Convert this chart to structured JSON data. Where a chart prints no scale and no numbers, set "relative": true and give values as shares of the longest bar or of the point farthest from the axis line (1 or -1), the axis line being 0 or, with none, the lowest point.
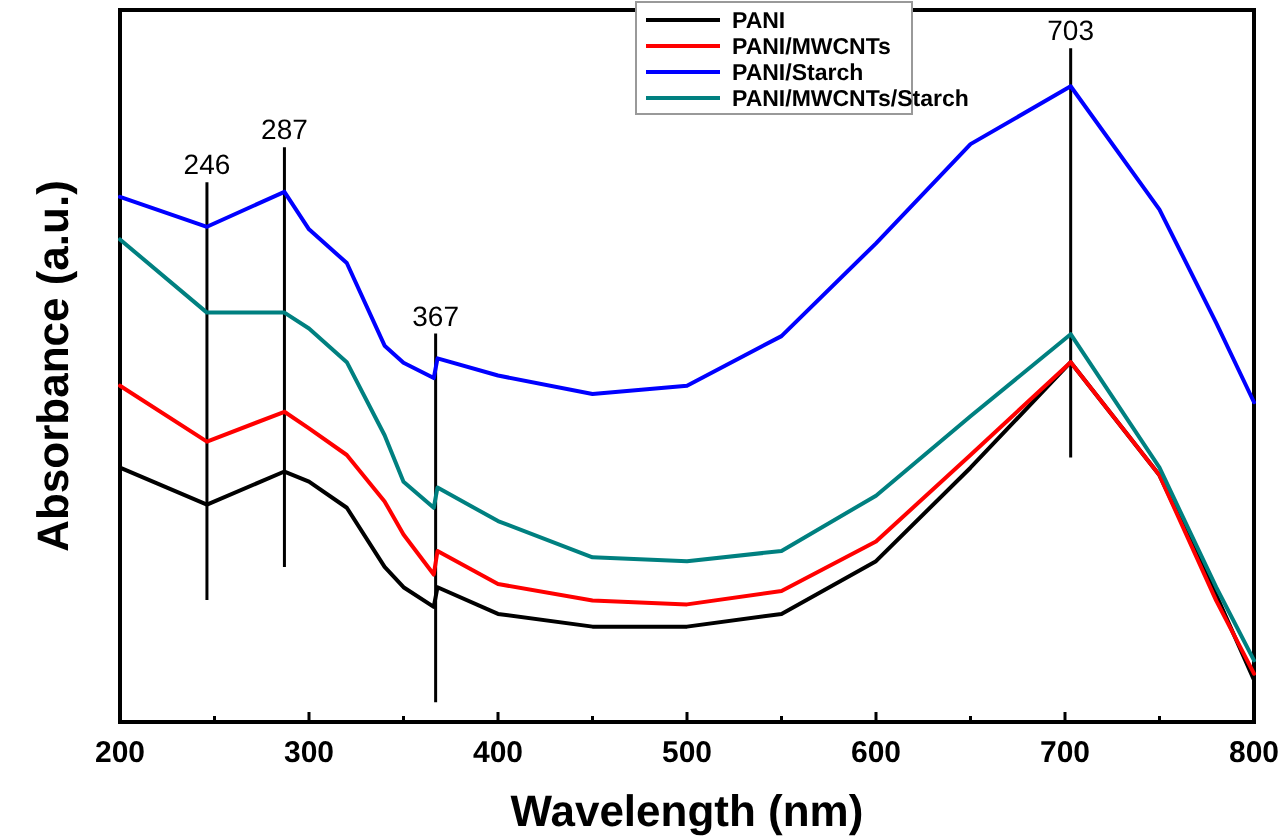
{
  "chart_data": {
    "type": "line",
    "relative": true,
    "xlabel": "Wavelength (nm)",
    "ylabel": "Absorbance (a.u.)",
    "xlim": [
      200,
      800
    ],
    "xticks": [
      200,
      {
        "value": 250,
        "label": null
      },
      300,
      {
        "value": 350,
        "label": null
      },
      400,
      {
        "value": 450,
        "label": null
      },
      500,
      {
        "value": 550,
        "label": null
      },
      600,
      {
        "value": 650,
        "label": null
      },
      700,
      {
        "value": 750,
        "label": null
      },
      800
    ],
    "x": [
      200,
      246,
      287,
      300,
      320,
      340,
      350,
      366,
      368,
      400,
      450,
      500,
      550,
      600,
      650,
      703,
      750,
      780,
      800
    ],
    "series": [
      {
        "name": "PANI",
        "color": "#000000",
        "values": [
          0.4,
          0.342,
          0.394,
          0.378,
          0.337,
          0.244,
          0.212,
          0.181,
          0.212,
          0.17,
          0.15,
          0.15,
          0.17,
          0.253,
          0.4,
          0.566,
          0.388,
          0.2,
          0.066
        ]
      },
      {
        "name": "PANI/MWCNTs",
        "color": "#ff0000",
        "values": [
          0.529,
          0.441,
          0.488,
          0.462,
          0.42,
          0.347,
          0.295,
          0.232,
          0.269,
          0.217,
          0.191,
          0.185,
          0.206,
          0.284,
          0.42,
          0.566,
          0.388,
          0.191,
          0.076
        ]
      },
      {
        "name": "PANI/Starch",
        "color": "#0000ff",
        "values": [
          0.826,
          0.779,
          0.834,
          0.775,
          0.722,
          0.592,
          0.565,
          0.541,
          0.572,
          0.545,
          0.516,
          0.529,
          0.607,
          0.753,
          0.909,
          1.0,
          0.806,
          0.628,
          0.503
        ]
      },
      {
        "name": "PANI/MWCNTs/Starch",
        "color": "#008080",
        "values": [
          0.759,
          0.644,
          0.644,
          0.619,
          0.566,
          0.451,
          0.378,
          0.337,
          0.369,
          0.316,
          0.259,
          0.253,
          0.269,
          0.356,
          0.481,
          0.61,
          0.4,
          0.212,
          0.097
        ]
      }
    ],
    "ref_lines": [
      {
        "axis": "x",
        "value": 246,
        "label": "246"
      },
      {
        "axis": "x",
        "value": 287,
        "label": "287"
      },
      {
        "axis": "x",
        "value": 367,
        "label": "367"
      },
      {
        "axis": "x",
        "value": 703,
        "label": "703"
      }
    ],
    "legend": "top",
    "grid": false,
    "marker": "none",
    "line_style": "solid"
  }
}
